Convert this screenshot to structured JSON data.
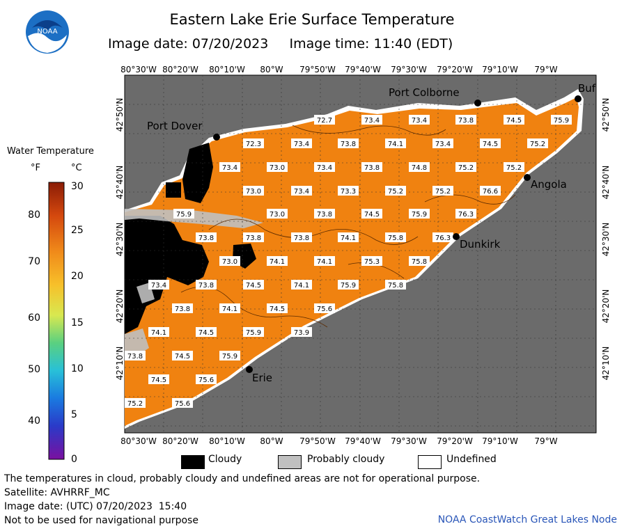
{
  "header": {
    "title": "Eastern Lake Erie Surface Temperature",
    "image_date": "Image date: 07/20/2023",
    "image_time": "Image time: 11:40 (EDT)",
    "logo_text": "NOAA"
  },
  "colorbar": {
    "title": "Water Temperature",
    "unit_f": "°F",
    "unit_c": "°C",
    "f_ticks": [
      "80",
      "70",
      "60",
      "50",
      "40"
    ],
    "c_ticks": [
      "30",
      "25",
      "20",
      "15",
      "10",
      "5",
      "0"
    ]
  },
  "axes": {
    "lon_labels": [
      "80°30'W",
      "80°20'W",
      "80°10'W",
      "80°W",
      "79°50'W",
      "79°40'W",
      "79°30'W",
      "79°20'W",
      "79°10'W",
      "79°W"
    ],
    "lat_labels": [
      "42°50'N",
      "42°40'N",
      "42°30'N",
      "42°20'N",
      "42°10'N"
    ]
  },
  "places": [
    {
      "name": "Port Colborne"
    },
    {
      "name": "Port Dover"
    },
    {
      "name": "Buf"
    },
    {
      "name": "Angola"
    },
    {
      "name": "Dunkirk"
    },
    {
      "name": "Erie"
    }
  ],
  "temperatures": [
    "72.7",
    "73.4",
    "73.4",
    "73.8",
    "74.5",
    "75.9",
    "72.3",
    "73.4",
    "73.8",
    "74.1",
    "73.4",
    "74.5",
    "75.2",
    "73.4",
    "73.0",
    "73.4",
    "73.8",
    "74.8",
    "75.2",
    "75.2",
    "73.0",
    "73.4",
    "73.3",
    "75.2",
    "75.2",
    "76.6",
    "75.9",
    "73.0",
    "73.8",
    "74.5",
    "75.9",
    "76.3",
    "73.8",
    "73.8",
    "73.8",
    "74.1",
    "75.8",
    "76.3",
    "73.0",
    "74.1",
    "74.1",
    "75.3",
    "75.8",
    "73.4",
    "73.8",
    "74.5",
    "74.1",
    "75.9",
    "75.8",
    "73.8",
    "74.1",
    "74.5",
    "75.6",
    "74.1",
    "74.5",
    "75.9",
    "73.9",
    "73.8",
    "74.5",
    "75.9",
    "74.5",
    "75.6",
    "75.2",
    "75.6"
  ],
  "legend": {
    "cloudy": "Cloudy",
    "probably_cloudy": "Probably cloudy",
    "undefined": "Undefined",
    "colors": {
      "cloudy": "#000000",
      "probably_cloudy": "#c0c0c0",
      "undefined": "#ffffff",
      "land": "#6b6b6b",
      "water": "#f08210"
    }
  },
  "footer": {
    "note": "The temperatures in cloud, probably cloudy and undefined areas are not for operational purpose.",
    "satellite": "Satellite: AVHRRF_MC",
    "utc": "Image date: (UTC) 07/20/2023  15:40",
    "nav": "Not to be used for navigational purpose",
    "credit": "NOAA CoastWatch Great Lakes Node"
  }
}
